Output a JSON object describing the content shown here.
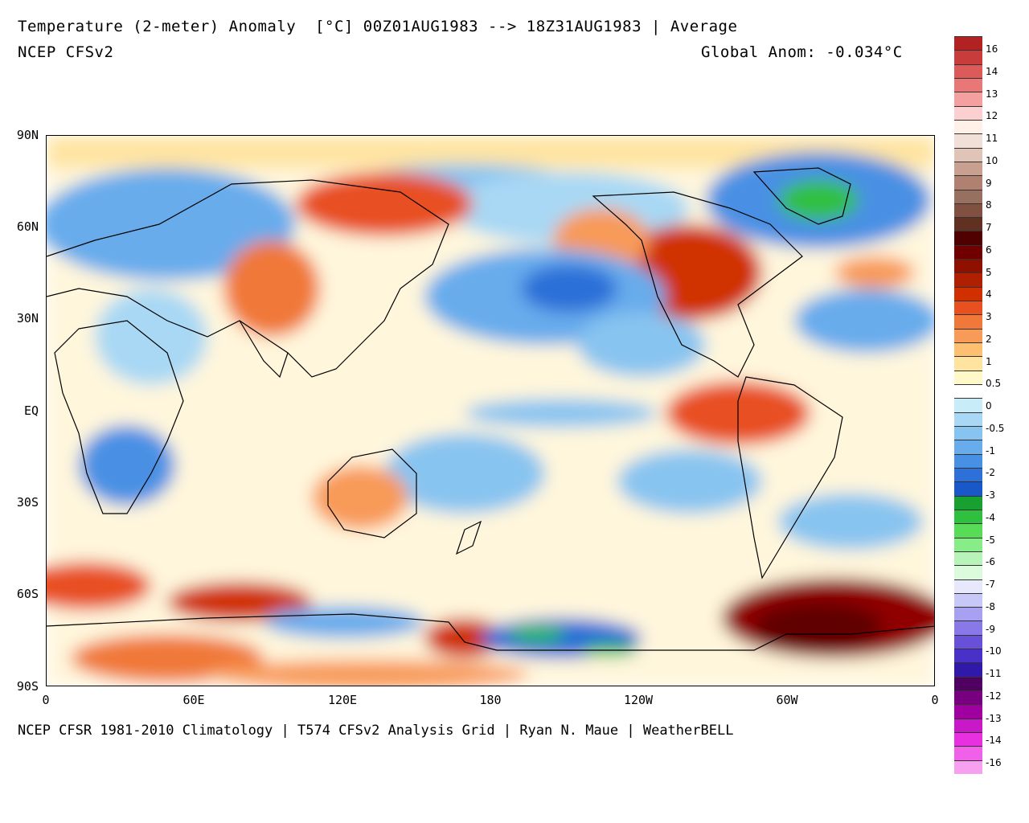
{
  "header": {
    "title": "Temperature (2-meter) Anomaly  [°C] 00Z01AUG1983 --> 18Z31AUG1983 | Average",
    "model": "NCEP CFSv2",
    "global_anom": "Global Anom: -0.034°C"
  },
  "footer": "NCEP CFSR 1981-2010 Climatology | T574 CFSv2 Analysis Grid | Ryan N. Maue | WeatherBELL",
  "axes": {
    "y_ticks": [
      "90N",
      "60N",
      "30N",
      "EQ",
      "30S",
      "60S",
      "90S"
    ],
    "x_ticks": [
      "0",
      "60E",
      "120E",
      "180",
      "120W",
      "60W",
      "0"
    ]
  },
  "colorbar": {
    "labels": [
      "16",
      "14",
      "13",
      "12",
      "11",
      "10",
      "9",
      "8",
      "7",
      "6",
      "5",
      "4",
      "3",
      "2",
      "1",
      "0.5",
      "0",
      "-0.5",
      "-1",
      "-2",
      "-3",
      "-4",
      "-5",
      "-6",
      "-7",
      "-8",
      "-9",
      "-10",
      "-11",
      "-12",
      "-13",
      "-14",
      "-16"
    ],
    "colors": [
      "#b22222",
      "#c83c3c",
      "#dc5a5a",
      "#e87878",
      "#f4a0a0",
      "#fcd0d0",
      "#fff0e8",
      "#f0e0d8",
      "#e0c4b8",
      "#c8a090",
      "#b08070",
      "#987060",
      "#805040",
      "#603020",
      "#500000",
      "#700000",
      "#901000",
      "#b02000",
      "#d03000",
      "#e85020",
      "#f07838",
      "#f89a58",
      "#fcc070",
      "#ffe4a0",
      "#fff8c8",
      "#ffffff",
      "#c8ecf8",
      "#a8d8f4",
      "#88c4f0",
      "#68acec",
      "#4890e4",
      "#2c70d8",
      "#1858c8",
      "#18a030",
      "#30c040",
      "#58dc58",
      "#88ec88",
      "#b8f4b8",
      "#dcfadc",
      "#e8e8fc",
      "#c8c8f8",
      "#a8a0f0",
      "#8878e8",
      "#6850d8",
      "#4830c8",
      "#3018a8",
      "#500060",
      "#780080",
      "#a000a0",
      "#c818c8",
      "#e830e0",
      "#f060e8",
      "#f8a0f0"
    ]
  },
  "map_colors": {
    "ocean_base": "#ffffff",
    "cold1": "#c8ecf8",
    "cold2": "#88c4f0",
    "cold3": "#4890e4",
    "warm1": "#ffe4a0",
    "warm2": "#f89a58",
    "warm3": "#d03000",
    "warm4": "#700000",
    "green": "#30c040",
    "land_outline": "#000000"
  }
}
